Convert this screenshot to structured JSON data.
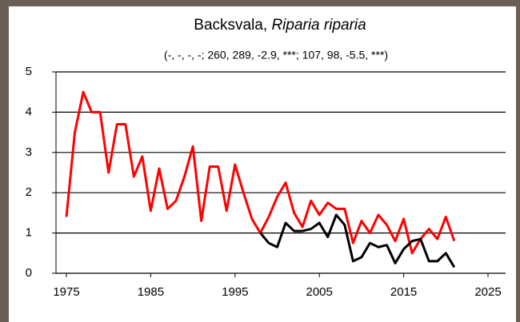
{
  "chart_data": {
    "type": "line",
    "title": "Backsvala,",
    "title_species": "Riparia riparia",
    "subtitle": "(-, -, -, -; 260, 289, -2.9, ***; 107, 98, -5.5, ***)",
    "x": [
      1975,
      1976,
      1977,
      1978,
      1979,
      1980,
      1981,
      1982,
      1983,
      1984,
      1985,
      1986,
      1987,
      1988,
      1989,
      1990,
      1991,
      1992,
      1993,
      1994,
      1995,
      1996,
      1997,
      1998,
      1999,
      2000,
      2001,
      2002,
      2003,
      2004,
      2005,
      2006,
      2007,
      2008,
      2009,
      2010,
      2011,
      2012,
      2013,
      2014,
      2015,
      2016,
      2017,
      2018,
      2019,
      2020,
      2021
    ],
    "series": [
      {
        "color": "#ff0000",
        "values": [
          1.4,
          3.5,
          4.5,
          4.0,
          4.0,
          2.5,
          3.7,
          3.7,
          2.4,
          2.9,
          1.55,
          2.6,
          1.6,
          1.8,
          2.4,
          3.15,
          1.3,
          2.65,
          2.65,
          1.55,
          2.7,
          2.0,
          1.35,
          1.0,
          1.4,
          1.9,
          2.25,
          1.5,
          1.15,
          1.8,
          1.45,
          1.75,
          1.6,
          1.6,
          0.75,
          1.3,
          1.0,
          1.45,
          1.2,
          0.8,
          1.35,
          0.5,
          0.85,
          1.1,
          0.85,
          1.4,
          0.8
        ]
      },
      {
        "color": "#000000",
        "values": [
          null,
          null,
          null,
          null,
          null,
          null,
          null,
          null,
          null,
          null,
          null,
          null,
          null,
          null,
          null,
          null,
          null,
          null,
          null,
          null,
          null,
          null,
          null,
          1.0,
          0.75,
          0.65,
          1.25,
          1.05,
          1.05,
          1.1,
          1.25,
          0.9,
          1.45,
          1.2,
          0.3,
          0.4,
          0.75,
          0.65,
          0.7,
          0.25,
          0.6,
          0.8,
          0.85,
          0.3,
          0.3,
          0.5,
          0.15
        ]
      }
    ],
    "xlim": [
      1975,
      2025
    ],
    "xticks": [
      1975,
      1985,
      1995,
      2005,
      2015,
      2025
    ],
    "ylim": [
      0,
      5
    ],
    "yticks": [
      0,
      1,
      2,
      3,
      4,
      5
    ],
    "grid": true
  }
}
